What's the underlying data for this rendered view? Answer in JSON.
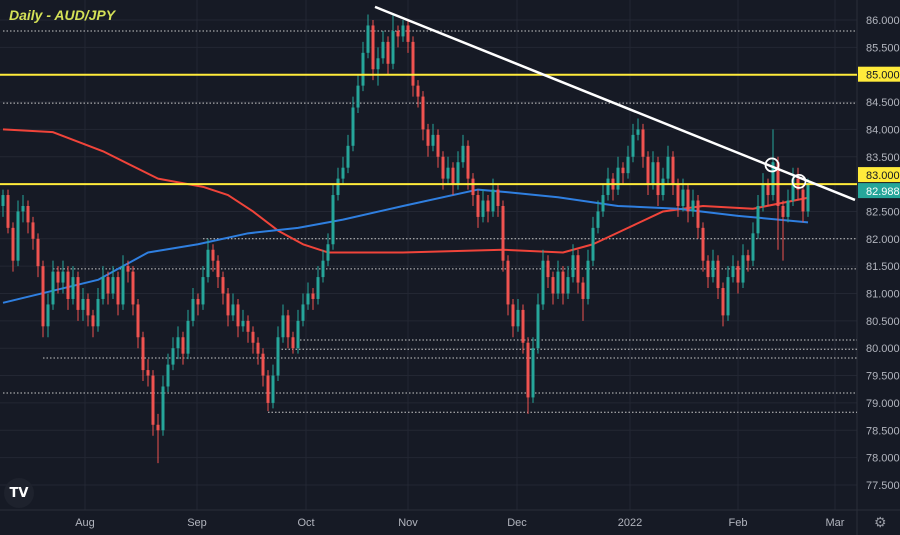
{
  "chart_data": {
    "type": "candlestick",
    "title": "Daily - AUD/JPY",
    "x_tick_labels": [
      "Aug",
      "Sep",
      "Oct",
      "Nov",
      "Dec",
      "2022",
      "Feb",
      "Mar"
    ],
    "y_ticks": [
      86.0,
      85.5,
      85.0,
      84.5,
      84.0,
      83.5,
      83.0,
      82.5,
      82.0,
      81.5,
      81.0,
      80.5,
      80.0,
      79.5,
      79.0,
      78.5,
      78.0,
      77.5
    ],
    "ylim": [
      77.3,
      86.35
    ],
    "grid": true,
    "colors": {
      "background": "#161a25",
      "up": "#26a69a",
      "down": "#ef5350",
      "ma_red": "#f0443a",
      "ma_blue": "#2f7fe0",
      "level": "#ffeb3b",
      "trendline": "#ffffff",
      "current_tag": "#26a69a"
    },
    "candles_ohlc": [
      [
        82.6,
        82.9,
        82.4,
        82.8
      ],
      [
        82.8,
        82.9,
        82.1,
        82.2
      ],
      [
        82.2,
        82.3,
        81.4,
        81.6
      ],
      [
        81.6,
        82.7,
        81.5,
        82.5
      ],
      [
        82.5,
        82.8,
        82.3,
        82.6
      ],
      [
        82.6,
        82.7,
        82.1,
        82.3
      ],
      [
        82.3,
        82.4,
        81.8,
        82.0
      ],
      [
        82.0,
        82.1,
        81.3,
        81.5
      ],
      [
        81.5,
        81.6,
        80.2,
        80.4
      ],
      [
        80.4,
        81.0,
        80.2,
        80.8
      ],
      [
        80.8,
        81.6,
        80.7,
        81.4
      ],
      [
        81.4,
        81.5,
        81.0,
        81.2
      ],
      [
        81.2,
        81.6,
        81.0,
        81.4
      ],
      [
        81.4,
        81.5,
        80.7,
        80.9
      ],
      [
        80.9,
        81.5,
        80.8,
        81.3
      ],
      [
        81.3,
        81.4,
        80.5,
        80.7
      ],
      [
        80.7,
        81.1,
        80.5,
        80.9
      ],
      [
        80.9,
        81.0,
        80.4,
        80.6
      ],
      [
        80.6,
        80.7,
        80.2,
        80.4
      ],
      [
        80.4,
        81.1,
        80.3,
        80.9
      ],
      [
        80.9,
        81.5,
        80.8,
        81.3
      ],
      [
        81.3,
        81.4,
        80.8,
        81.0
      ],
      [
        81.0,
        81.5,
        80.9,
        81.3
      ],
      [
        81.3,
        81.4,
        80.6,
        80.8
      ],
      [
        80.8,
        81.7,
        80.7,
        81.5
      ],
      [
        81.5,
        81.6,
        81.2,
        81.4
      ],
      [
        81.4,
        81.5,
        80.6,
        80.8
      ],
      [
        80.8,
        80.9,
        80.0,
        80.2
      ],
      [
        80.2,
        80.3,
        79.4,
        79.6
      ],
      [
        79.6,
        79.8,
        79.3,
        79.5
      ],
      [
        79.5,
        79.6,
        78.4,
        78.6
      ],
      [
        78.6,
        78.8,
        77.9,
        78.5
      ],
      [
        78.5,
        79.5,
        78.4,
        79.3
      ],
      [
        79.3,
        79.9,
        79.2,
        79.7
      ],
      [
        79.7,
        80.2,
        79.6,
        80.0
      ],
      [
        80.0,
        80.4,
        79.8,
        80.2
      ],
      [
        80.2,
        80.3,
        79.7,
        79.9
      ],
      [
        79.9,
        80.7,
        79.8,
        80.5
      ],
      [
        80.5,
        81.1,
        80.4,
        80.9
      ],
      [
        80.9,
        81.0,
        80.6,
        80.8
      ],
      [
        80.8,
        81.5,
        80.7,
        81.3
      ],
      [
        81.3,
        82.0,
        81.2,
        81.8
      ],
      [
        81.8,
        81.9,
        81.4,
        81.6
      ],
      [
        81.6,
        81.7,
        81.1,
        81.3
      ],
      [
        81.3,
        81.4,
        80.8,
        81.0
      ],
      [
        81.0,
        81.1,
        80.4,
        80.6
      ],
      [
        80.6,
        81.0,
        80.5,
        80.8
      ],
      [
        80.8,
        80.9,
        80.2,
        80.4
      ],
      [
        80.4,
        80.7,
        80.3,
        80.5
      ],
      [
        80.5,
        80.6,
        80.1,
        80.3
      ],
      [
        80.3,
        80.4,
        79.9,
        80.1
      ],
      [
        80.1,
        80.2,
        79.7,
        79.9
      ],
      [
        79.9,
        80.0,
        79.3,
        79.5
      ],
      [
        79.5,
        79.6,
        78.85,
        79.0
      ],
      [
        79.0,
        79.7,
        78.9,
        79.5
      ],
      [
        79.5,
        80.4,
        79.4,
        80.2
      ],
      [
        80.2,
        80.8,
        80.1,
        80.6
      ],
      [
        80.6,
        80.7,
        80.0,
        80.2
      ],
      [
        80.2,
        80.3,
        79.9,
        80.0
      ],
      [
        80.0,
        80.7,
        79.9,
        80.5
      ],
      [
        80.5,
        81.0,
        80.4,
        80.8
      ],
      [
        80.8,
        81.2,
        80.7,
        81.0
      ],
      [
        81.0,
        81.1,
        80.7,
        80.9
      ],
      [
        80.9,
        81.5,
        80.8,
        81.3
      ],
      [
        81.3,
        81.8,
        81.2,
        81.6
      ],
      [
        81.6,
        82.1,
        81.5,
        81.9
      ],
      [
        81.9,
        83.0,
        81.8,
        82.8
      ],
      [
        82.8,
        83.3,
        82.7,
        83.1
      ],
      [
        83.1,
        83.5,
        83.0,
        83.3
      ],
      [
        83.3,
        83.9,
        83.2,
        83.7
      ],
      [
        83.7,
        84.6,
        83.6,
        84.4
      ],
      [
        84.4,
        85.0,
        84.3,
        84.8
      ],
      [
        84.8,
        85.6,
        84.7,
        85.4
      ],
      [
        85.4,
        86.1,
        85.3,
        85.9
      ],
      [
        85.9,
        86.0,
        84.9,
        85.1
      ],
      [
        85.1,
        85.5,
        84.8,
        85.3
      ],
      [
        85.3,
        85.8,
        85.2,
        85.6
      ],
      [
        85.6,
        85.7,
        85.0,
        85.2
      ],
      [
        85.2,
        86.1,
        85.1,
        85.8
      ],
      [
        85.8,
        85.9,
        85.5,
        85.7
      ],
      [
        85.7,
        86.0,
        85.6,
        85.9
      ],
      [
        85.9,
        86.0,
        85.4,
        85.6
      ],
      [
        85.6,
        85.7,
        84.6,
        84.8
      ],
      [
        84.8,
        84.9,
        84.4,
        84.6
      ],
      [
        84.6,
        84.7,
        83.8,
        84.0
      ],
      [
        84.0,
        84.1,
        83.5,
        83.7
      ],
      [
        83.7,
        84.1,
        83.6,
        83.9
      ],
      [
        83.9,
        84.0,
        83.3,
        83.5
      ],
      [
        83.5,
        83.6,
        82.9,
        83.1
      ],
      [
        83.1,
        83.5,
        83.0,
        83.3
      ],
      [
        83.3,
        83.4,
        82.8,
        83.0
      ],
      [
        83.0,
        83.6,
        82.9,
        83.4
      ],
      [
        83.4,
        83.9,
        83.3,
        83.7
      ],
      [
        83.7,
        83.8,
        82.9,
        83.1
      ],
      [
        83.1,
        83.2,
        82.6,
        82.8
      ],
      [
        82.8,
        82.9,
        82.2,
        82.4
      ],
      [
        82.4,
        82.9,
        82.3,
        82.7
      ],
      [
        82.7,
        82.8,
        82.3,
        82.5
      ],
      [
        82.5,
        83.1,
        82.4,
        82.9
      ],
      [
        82.9,
        83.0,
        82.4,
        82.6
      ],
      [
        82.6,
        82.7,
        81.4,
        81.6
      ],
      [
        81.6,
        81.7,
        80.6,
        80.8
      ],
      [
        80.8,
        80.9,
        80.2,
        80.4
      ],
      [
        80.4,
        80.9,
        80.3,
        80.7
      ],
      [
        80.7,
        80.8,
        79.9,
        80.1
      ],
      [
        80.1,
        80.2,
        78.8,
        79.1
      ],
      [
        79.1,
        80.2,
        79.0,
        80.0
      ],
      [
        80.0,
        81.0,
        79.9,
        80.8
      ],
      [
        80.8,
        81.8,
        80.7,
        81.6
      ],
      [
        81.6,
        81.7,
        81.1,
        81.3
      ],
      [
        81.3,
        81.4,
        80.8,
        81.0
      ],
      [
        81.0,
        81.6,
        80.9,
        81.4
      ],
      [
        81.4,
        81.5,
        80.8,
        81.0
      ],
      [
        81.0,
        81.5,
        80.9,
        81.3
      ],
      [
        81.3,
        81.9,
        81.2,
        81.7
      ],
      [
        81.7,
        81.8,
        81.0,
        81.2
      ],
      [
        81.2,
        81.3,
        80.5,
        80.9
      ],
      [
        80.9,
        81.8,
        80.8,
        81.6
      ],
      [
        81.6,
        82.4,
        81.5,
        82.2
      ],
      [
        82.2,
        82.7,
        82.1,
        82.5
      ],
      [
        82.5,
        83.0,
        82.4,
        82.8
      ],
      [
        82.8,
        83.3,
        82.7,
        83.1
      ],
      [
        83.1,
        83.2,
        82.7,
        82.9
      ],
      [
        82.9,
        83.5,
        82.8,
        83.3
      ],
      [
        83.3,
        83.4,
        83.0,
        83.2
      ],
      [
        83.2,
        83.7,
        83.1,
        83.5
      ],
      [
        83.5,
        84.1,
        83.4,
        83.9
      ],
      [
        83.9,
        84.2,
        83.8,
        84.0
      ],
      [
        84.0,
        84.1,
        83.3,
        83.5
      ],
      [
        83.5,
        83.6,
        82.8,
        83.0
      ],
      [
        83.0,
        83.6,
        82.9,
        83.4
      ],
      [
        83.4,
        83.5,
        82.6,
        82.8
      ],
      [
        82.8,
        83.3,
        82.7,
        83.1
      ],
      [
        83.1,
        83.7,
        83.0,
        83.5
      ],
      [
        83.5,
        83.6,
        82.8,
        83.0
      ],
      [
        83.0,
        83.1,
        82.4,
        82.6
      ],
      [
        82.6,
        83.1,
        82.5,
        82.9
      ],
      [
        82.9,
        83.0,
        82.3,
        82.5
      ],
      [
        82.5,
        82.9,
        82.4,
        82.7
      ],
      [
        82.7,
        82.8,
        82.0,
        82.2
      ],
      [
        82.2,
        82.3,
        81.4,
        81.6
      ],
      [
        81.6,
        81.7,
        81.1,
        81.3
      ],
      [
        81.3,
        81.8,
        81.2,
        81.6
      ],
      [
        81.6,
        81.7,
        80.9,
        81.1
      ],
      [
        81.1,
        81.2,
        80.4,
        80.6
      ],
      [
        80.6,
        81.5,
        80.5,
        81.3
      ],
      [
        81.3,
        81.7,
        81.2,
        81.5
      ],
      [
        81.5,
        81.6,
        81.0,
        81.2
      ],
      [
        81.2,
        81.9,
        81.1,
        81.7
      ],
      [
        81.7,
        81.8,
        81.4,
        81.6
      ],
      [
        81.6,
        82.3,
        81.5,
        82.1
      ],
      [
        82.1,
        82.8,
        82.0,
        82.6
      ],
      [
        82.6,
        83.2,
        82.5,
        83.0
      ],
      [
        83.0,
        83.1,
        82.6,
        82.8
      ],
      [
        82.8,
        84.0,
        82.7,
        83.4
      ],
      [
        83.4,
        83.5,
        81.8,
        82.6
      ],
      [
        82.6,
        82.7,
        81.6,
        82.4
      ],
      [
        82.4,
        82.9,
        82.3,
        82.7
      ],
      [
        82.7,
        83.3,
        82.6,
        83.1
      ],
      [
        83.1,
        83.3,
        82.7,
        82.9
      ],
      [
        82.9,
        83.0,
        82.3,
        82.5
      ],
      [
        82.5,
        83.1,
        82.4,
        82.99
      ]
    ],
    "moving_average_red": [
      [
        0,
        84.0
      ],
      [
        10,
        83.95
      ],
      [
        20,
        83.6
      ],
      [
        31,
        83.1
      ],
      [
        40,
        82.95
      ],
      [
        45,
        82.8
      ],
      [
        50,
        82.5
      ],
      [
        55,
        82.15
      ],
      [
        60,
        81.9
      ],
      [
        65,
        81.75
      ],
      [
        80,
        81.75
      ],
      [
        100,
        81.8
      ],
      [
        112,
        81.75
      ],
      [
        118,
        81.9
      ],
      [
        125,
        82.2
      ],
      [
        132,
        82.5
      ],
      [
        140,
        82.6
      ],
      [
        150,
        82.55
      ],
      [
        161,
        82.75
      ]
    ],
    "moving_average_blue": [
      [
        0,
        80.83
      ],
      [
        19,
        81.25
      ],
      [
        29,
        81.75
      ],
      [
        39,
        81.9
      ],
      [
        49,
        82.1
      ],
      [
        59,
        82.2
      ],
      [
        68,
        82.35
      ],
      [
        80,
        82.6
      ],
      [
        95,
        82.9
      ],
      [
        101,
        82.85
      ],
      [
        111,
        82.76
      ],
      [
        123,
        82.6
      ],
      [
        135,
        82.55
      ],
      [
        147,
        82.42
      ],
      [
        161,
        82.3
      ]
    ],
    "horizontal_levels": [
      {
        "price": 85.0,
        "label": "85.000"
      },
      {
        "price": 83.0,
        "label": "83.000"
      }
    ],
    "current_price": {
      "price": 82.988,
      "label": "82.988"
    },
    "dotted_levels": [
      {
        "price": 85.8,
        "from_candle": 0
      },
      {
        "price": 84.48,
        "from_candle": 0
      },
      {
        "price": 82.0,
        "from_candle": 40
      },
      {
        "price": 81.45,
        "from_candle": 10
      },
      {
        "price": 80.15,
        "from_candle": 58
      },
      {
        "price": 79.98,
        "from_candle": 55
      },
      {
        "price": 79.82,
        "from_candle": 8
      },
      {
        "price": 79.18,
        "from_candle": 0
      },
      {
        "price": 78.83,
        "from_candle": 53
      }
    ],
    "trendline": {
      "start": [
        74.4,
        86.24
      ],
      "end": [
        170.4,
        82.71
      ]
    },
    "touch_circles": [
      [
        153.8,
        83.35
      ],
      [
        159.2,
        83.05
      ]
    ]
  },
  "ui": {
    "logo": "TV",
    "settings_icon": "gear-icon"
  }
}
